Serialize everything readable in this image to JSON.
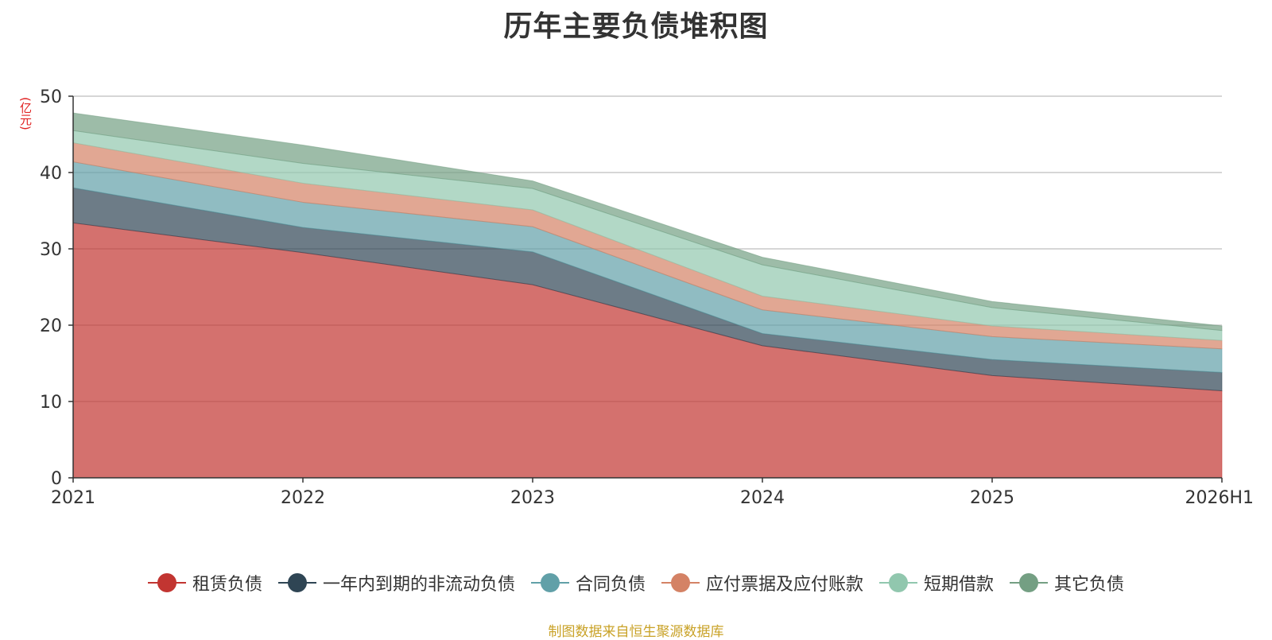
{
  "title": "历年主要负债堆积图",
  "source": "制图数据来自恒生聚源数据库",
  "chart_data": {
    "type": "area",
    "stacked": true,
    "title": "历年主要负债堆积图",
    "ylabel": "(亿元)",
    "xlabel": "",
    "categories": [
      "2021",
      "2022",
      "2023",
      "2024",
      "2025",
      "2026H1"
    ],
    "ylim": [
      0,
      50
    ],
    "yticks": [
      0,
      10,
      20,
      30,
      40,
      50
    ],
    "grid": true,
    "legend_position": "bottom",
    "series": [
      {
        "name": "租赁负债",
        "color": "#c23531",
        "values": [
          33.4,
          29.5,
          25.3,
          17.3,
          13.4,
          11.4
        ]
      },
      {
        "name": "一年内到期的非流动负债",
        "color": "#2f4554",
        "values": [
          4.6,
          3.3,
          4.3,
          1.6,
          2.1,
          2.4
        ]
      },
      {
        "name": "合同负债",
        "color": "#61a0a8",
        "values": [
          3.4,
          3.3,
          3.3,
          3.1,
          3.0,
          3.1
        ]
      },
      {
        "name": "应付票据及应付账款",
        "color": "#d48265",
        "values": [
          2.5,
          2.5,
          2.2,
          1.8,
          1.4,
          1.1
        ]
      },
      {
        "name": "短期借款",
        "color": "#91c7ae",
        "values": [
          1.6,
          2.6,
          2.8,
          4.1,
          2.4,
          1.3
        ]
      },
      {
        "name": "其它负债",
        "color": "#749f83",
        "values": [
          2.3,
          2.4,
          1.0,
          1.0,
          0.8,
          0.6
        ]
      }
    ]
  }
}
